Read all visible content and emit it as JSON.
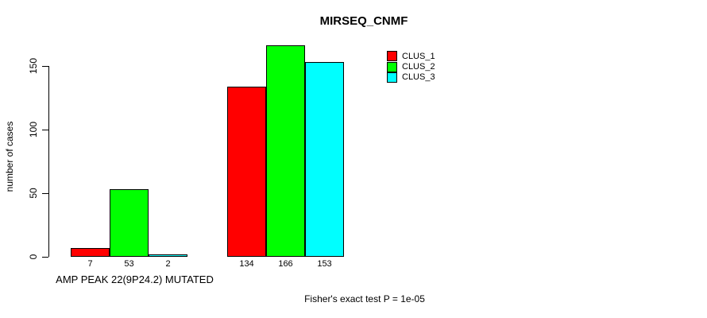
{
  "chart_data": {
    "type": "bar",
    "title": "MIRSEQ_CNMF",
    "xlabel": "",
    "ylabel": "number of cases",
    "ylim": [
      0,
      150
    ],
    "yticks": [
      0,
      50,
      100,
      150
    ],
    "grid": false,
    "legend_position": "top-right",
    "categories": [
      "AMP PEAK 22(9P24.2) MUTATED",
      ""
    ],
    "series": [
      {
        "name": "CLUS_1",
        "color": "#ff0000",
        "values": [
          7,
          134
        ]
      },
      {
        "name": "CLUS_2",
        "color": "#00ff00",
        "values": [
          53,
          166
        ]
      },
      {
        "name": "CLUS_3",
        "color": "#00ffff",
        "values": [
          2,
          153
        ]
      }
    ],
    "groups": [
      {
        "label": "AMP PEAK 22(9P24.2) MUTATED",
        "values": [
          7,
          53,
          2
        ]
      },
      {
        "label": "",
        "values": [
          134,
          166,
          153
        ]
      }
    ],
    "caption": "Fisher's exact test P = 1e-05"
  }
}
